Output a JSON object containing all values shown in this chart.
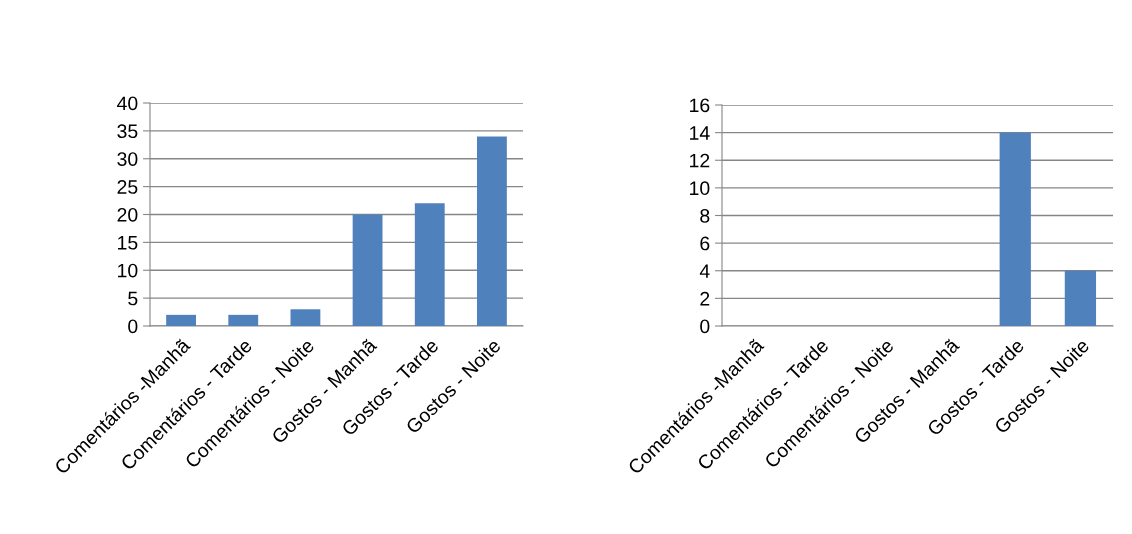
{
  "chart_data": [
    {
      "type": "bar",
      "categories": [
        "Comentários -Manhã",
        "Comentários - Tarde",
        "Comentários - Noite",
        "Gostos - Manhã",
        "Gostos - Tarde",
        "Gostos - Noite"
      ],
      "values": [
        2,
        2,
        3,
        20,
        22,
        34
      ],
      "color": "#4f81bd",
      "ylim": [
        0,
        40
      ],
      "yticks": [
        0,
        5,
        10,
        15,
        20,
        25,
        30,
        35,
        40
      ],
      "grid": "y"
    },
    {
      "type": "bar",
      "categories": [
        "Comentários -Manhã",
        "Comentários - Tarde",
        "Comentários - Noite",
        "Gostos - Manhã",
        "Gostos - Tarde",
        "Gostos - Noite"
      ],
      "values": [
        0,
        0,
        0,
        0,
        14,
        4
      ],
      "color": "#4f81bd",
      "ylim": [
        0,
        16
      ],
      "yticks": [
        0,
        2,
        4,
        6,
        8,
        10,
        12,
        14,
        16
      ],
      "grid": "y"
    }
  ]
}
